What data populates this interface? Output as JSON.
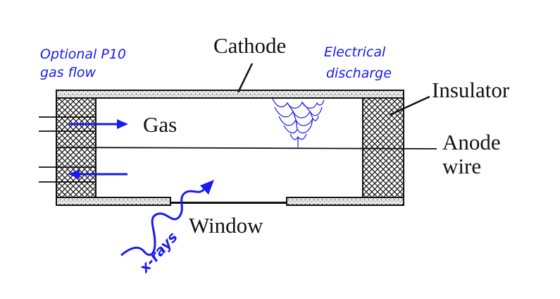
{
  "labels": {
    "cathode": "Cathode",
    "insulator": "Insulator",
    "anode_line1": "Anode",
    "anode_line2": "wire",
    "gas": "Gas",
    "window": "Window",
    "optional_line1": "Optional P10",
    "optional_line2": "gas flow",
    "discharge_line1": "Electrical",
    "discharge_line2": "discharge",
    "xrays": "x-rays"
  },
  "colors": {
    "annotation_blue": "#1a1aee",
    "ink": "#111111"
  }
}
